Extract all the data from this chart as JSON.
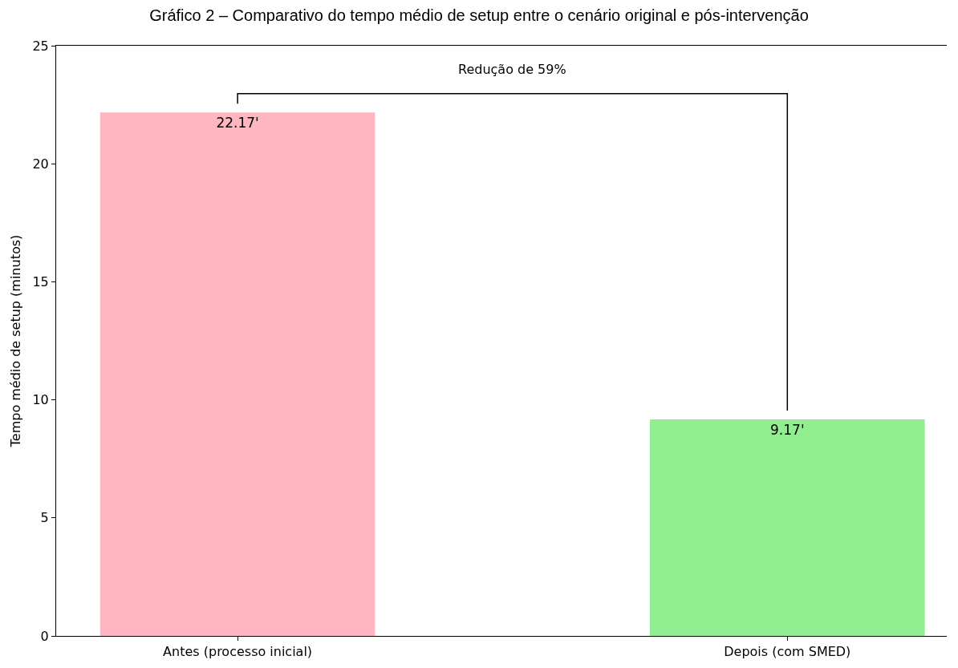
{
  "chart_data": {
    "type": "bar",
    "title": "Gráfico 2 – Comparativo do tempo médio de setup entre o cenário original e pós-intervenção",
    "ylabel": "Tempo médio de setup (minutos)",
    "categories": [
      "Antes (processo inicial)",
      "Depois (com SMED)"
    ],
    "values": [
      22.17,
      9.17
    ],
    "colors": [
      "#ffb6c1",
      "#90ee90"
    ],
    "value_labels": [
      "22.17'",
      "9.17'"
    ],
    "ylim": [
      0,
      25
    ],
    "yticks": [
      0,
      5,
      10,
      15,
      20,
      25
    ],
    "annotations": [
      "Redução de 59%"
    ]
  }
}
